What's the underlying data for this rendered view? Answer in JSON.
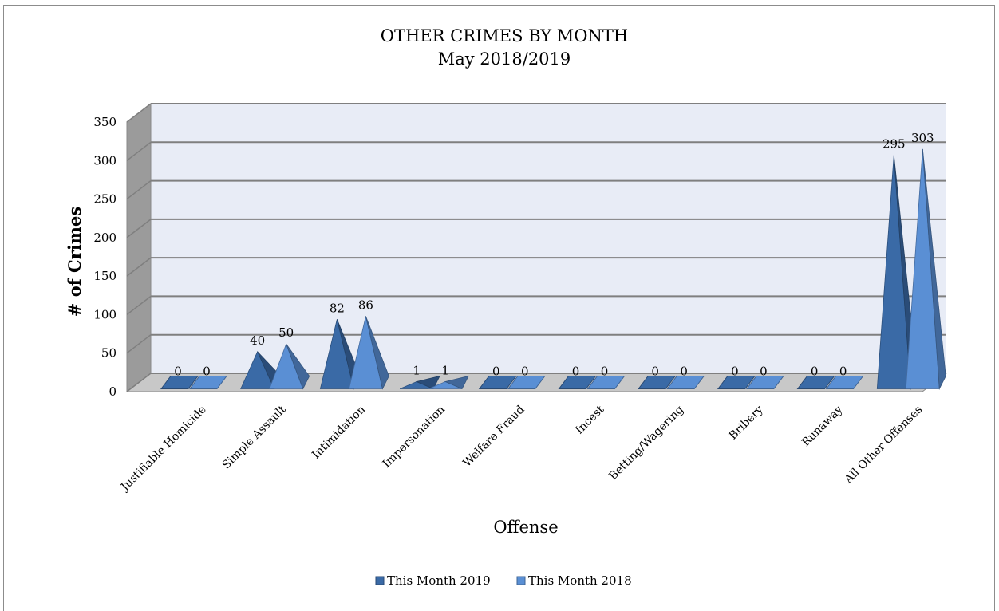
{
  "chart_data": {
    "type": "bar",
    "style": "3d-pyramid",
    "title": "OTHER CRIMES BY MONTH",
    "subtitle": "May 2018/2019",
    "xlabel": "Offense",
    "ylabel": "# of Crimes",
    "ylim": [
      0,
      350
    ],
    "yticks": [
      "0",
      "50",
      "100",
      "150",
      "200",
      "250",
      "300",
      "350"
    ],
    "grid": true,
    "legend_position": "bottom",
    "categories": [
      "Justifiable Homicide",
      "Simple Assault",
      "Intimidation",
      "Impersonation",
      "Welfare Fraud",
      "Incest",
      "Betting/Wagering",
      "Bribery",
      "Runaway",
      "All Other Offenses"
    ],
    "series": [
      {
        "name": "This Month 2019",
        "color": "#3a6aa6",
        "values": [
          0,
          40,
          82,
          1,
          0,
          0,
          0,
          0,
          0,
          295
        ]
      },
      {
        "name": "This Month 2018",
        "color": "#5a8fd4",
        "values": [
          0,
          50,
          86,
          1,
          0,
          0,
          0,
          0,
          0,
          303
        ]
      }
    ]
  }
}
